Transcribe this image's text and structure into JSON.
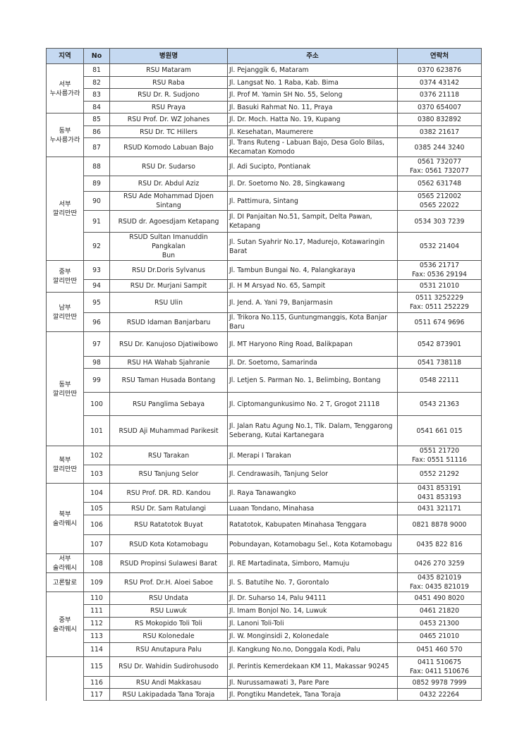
{
  "header": {
    "region": "지역",
    "no": "No",
    "name": "병원명",
    "address": "주소",
    "contact": "연락처"
  },
  "groups": [
    {
      "region": "서부\n누사릉가라",
      "rows": [
        {
          "no": "81",
          "name": "RSU Mataram",
          "address": "Jl. Pejanggik 6, Mataram",
          "contact": "0370 623876"
        },
        {
          "no": "82",
          "name": "RSU Raba",
          "address": "Jl. Langsat No. 1 Raba, Kab. Bima",
          "contact": "0374 43142"
        },
        {
          "no": "83",
          "name": "RSU Dr. R. Sudjono",
          "address": "Jl. Prof M. Yamin SH No. 55, Selong",
          "contact": "0376 21118"
        },
        {
          "no": "84",
          "name": "RSU Praya",
          "address": "Jl. Basuki Rahmat No. 11, Praya",
          "contact": "0370 654007"
        }
      ]
    },
    {
      "region": "동부\n누사릉가라",
      "rows": [
        {
          "no": "85",
          "name": "RSU Prof. Dr. WZ Johanes",
          "address": "Jl. Dr. Moch. Hatta No. 19, Kupang",
          "contact": "0380 832892"
        },
        {
          "no": "86",
          "name": "RSU Dr. TC Hillers",
          "address": "Jl. Kesehatan, Maumerere",
          "contact": "0382 21617"
        },
        {
          "no": "87",
          "name": "RSUD Komodo Labuan Bajo",
          "address": "Jl. Trans Ruteng - Labuan Bajo, Desa Golo Bilas,\nKecamatan Komodo",
          "contact": "0385 244 3240"
        }
      ]
    },
    {
      "region": "서부\n깔리만딴",
      "rows": [
        {
          "no": "88",
          "name": "RSU Dr. Sudarso",
          "address": "Jl. Adi Sucipto, Pontianak",
          "contact": "0561 732077\nFax: 0561 732077"
        },
        {
          "no": "89",
          "name": "RSU Dr. Abdul Aziz",
          "address": "Jl. Dr. Soetomo No. 28, Singkawang",
          "contact": "0562 631748"
        },
        {
          "no": "90",
          "name": "RSU Ade Mohammad Djoen Sintang",
          "address": "Jl. Pattimura, Sintang",
          "contact": "0565 212002\n0565 22022"
        },
        {
          "no": "91",
          "name": "RSUD dr. Agoesdjam Ketapang",
          "address": "Jl. DI Panjaitan No.51, Sampit, Delta Pawan, Ketapang",
          "contact": "0534 303 7239"
        },
        {
          "no": "92",
          "name": "RSUD Sultan Imanuddin Pangkalan\nBun",
          "address": "Jl. Sutan Syahrir No.17, Madurejo, Kotawaringin Barat",
          "contact": "0532 21404"
        }
      ]
    },
    {
      "region": "중부\n깔리만딴",
      "rows": [
        {
          "no": "93",
          "name": "RSU Dr.Doris Sylvanus",
          "address": "Jl. Tambun Bungai No. 4, Palangkaraya",
          "contact": "0536 21717\nFax: 0536 29194"
        },
        {
          "no": "94",
          "name": "RSU Dr. Murjani Sampit",
          "address": "Jl. H M Arsyad No. 65, Sampit",
          "contact": "0531 21010"
        }
      ]
    },
    {
      "region": "남부\n깔리만딴",
      "rows": [
        {
          "no": "95",
          "name": "RSU Ulin",
          "address": "Jl. Jend. A. Yani 79, Banjarmasin",
          "contact": "0511 3252229\nFax: 0511 252229"
        },
        {
          "no": "96",
          "name": "RSUD Idaman Banjarbaru",
          "address": "Jl. Trikora No.115, Guntungmanggis, Kota Banjar Baru",
          "contact": "0511 674 9696"
        }
      ]
    },
    {
      "region": "동부\n깔리만딴",
      "rows": [
        {
          "no": "97",
          "name": "RSU Dr. Kanujoso Djatiwibowo",
          "address": "Jl. MT Haryono Ring Road, Balikpapan",
          "contact": "0542 873901"
        },
        {
          "no": "98",
          "name": "RSU HA Wahab Sjahranie",
          "address": "Jl. Dr. Soetomo, Samarinda",
          "contact": "0541 738118"
        },
        {
          "no": "99",
          "name": "RSU Taman Husada Bontang",
          "address": "Jl. Letjen S. Parman No. 1, Belimbing, Bontang",
          "contact": "0548 22111"
        },
        {
          "no": "100",
          "name": "RSU Panglima Sebaya",
          "address": "Jl. Ciptomangunkusimo No. 2 T, Grogot 21118",
          "contact": "0543 21363"
        },
        {
          "no": "101",
          "name": "RSUD Aji Muhammad Parikesit",
          "address": "Jl. Jalan Ratu Agung No.1, Tlk. Dalam, Tenggarong\nSeberang, Kutai Kartanegara",
          "contact": "0541 661 015"
        }
      ]
    },
    {
      "region": "북부\n깔리만딴",
      "rows": [
        {
          "no": "102",
          "name": "RSU Tarakan",
          "address": "Jl. Merapi I Tarakan",
          "contact": "0551 21720\nFax: 0551 51116"
        },
        {
          "no": "103",
          "name": "RSU Tanjung Selor",
          "address": "Jl. Cendrawasih, Tanjung Selor",
          "contact": "0552 21292"
        }
      ]
    },
    {
      "region": "북부\n술라웨시",
      "rows": [
        {
          "no": "104",
          "name": "RSU Prof. DR. RD. Kandou",
          "address": "Jl. Raya Tanawangko",
          "contact": "0431 853191\n0431 853193"
        },
        {
          "no": "105",
          "name": "RSU Dr. Sam Ratulangi",
          "address": "Luaan Tondano, Minahasa",
          "contact": "0431 321171"
        },
        {
          "no": "106",
          "name": "RSU Ratatotok Buyat",
          "address": "Ratatotok, Kabupaten Minahasa Tenggara",
          "contact": "0821 8878 9000"
        },
        {
          "no": "107",
          "name": "RSUD Kota Kotamobagu",
          "address": "Pobundayan, Kotamobagu Sel., Kota Kotamobagu",
          "contact": "0435 822 816"
        }
      ]
    },
    {
      "region": "서부\n술라웨시",
      "rows": [
        {
          "no": "108",
          "name": "RSUD Propinsi Sulawesi Barat",
          "address": "Jl. RE Martadinata, Simboro, Mamuju",
          "contact": "0426 270 3259"
        }
      ]
    },
    {
      "region": "고론탈로",
      "rows": [
        {
          "no": "109",
          "name": "RSU Prof. Dr.H. Aloei Saboe",
          "address": "Jl. S. Batutihe No. 7, Gorontalo",
          "contact": "0435 821019\nFax: 0435 821019"
        }
      ]
    },
    {
      "region": "중부\n술라웨시",
      "rows": [
        {
          "no": "110",
          "name": "RSU Undata",
          "address": "Jl. Dr. Suharso 14, Palu 94111",
          "contact": "0451 490 8020"
        },
        {
          "no": "111",
          "name": "RSU Luwuk",
          "address": "Jl. Imam Bonjol No. 14, Luwuk",
          "contact": "0461 21820"
        },
        {
          "no": "112",
          "name": "RS Mokopido Toli Toli",
          "address": "Jl. Lanoni Toli-Toli",
          "contact": "0453 21300"
        },
        {
          "no": "113",
          "name": "RSU Kolonedale",
          "address": "Jl. W. Monginsidi 2, Kolonedale",
          "contact": "0465 21010"
        },
        {
          "no": "114",
          "name": "RSU Anutapura Palu",
          "address": "Jl. Kangkung No.no, Donggala Kodi, Palu",
          "contact": "0451 460 570"
        }
      ]
    },
    {
      "region": "",
      "rows": [
        {
          "no": "115",
          "name": "RSU Dr. Wahidin Sudirohusodo",
          "address": "Jl. Perintis Kemerdekaan KM 11, Makassar 90245",
          "contact": "0411 510675\nFax: 0411 510676"
        },
        {
          "no": "116",
          "name": "RSU Andi Makkasau",
          "address": "Jl. Nurussamawati 3, Pare Pare",
          "contact": "0852 9978 7999"
        },
        {
          "no": "117",
          "name": "RSU Lakipadada Tana Toraja",
          "address": "Jl. Pongtiku Mandetek, Tana Toraja",
          "contact": "0432 22264"
        }
      ]
    }
  ]
}
